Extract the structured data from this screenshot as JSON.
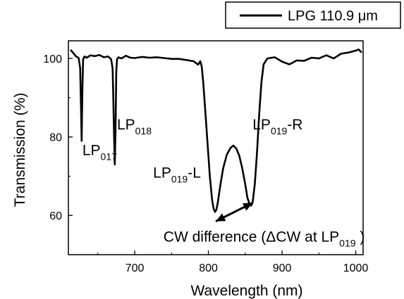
{
  "chart_data": {
    "type": "line",
    "title": "",
    "xlabel": "Wavelength (nm)",
    "ylabel": "Transmission (%)",
    "xlim": [
      610,
      1010
    ],
    "ylim": [
      50,
      104.5
    ],
    "x_ticks": [
      700,
      800,
      900,
      1000
    ],
    "y_ticks": [
      60,
      80,
      100
    ],
    "grid": false,
    "legend_position": "top-right",
    "color": "#000000",
    "series": [
      {
        "name": "LPG 110.9 μm",
        "x": [
          613,
          617,
          620,
          624,
          626,
          627,
          628,
          629,
          630,
          632,
          635,
          640,
          646,
          652,
          658,
          664,
          668,
          670,
          671,
          672,
          673,
          674,
          675,
          676,
          678,
          682,
          688,
          694,
          700,
          710,
          720,
          730,
          740,
          750,
          760,
          770,
          780,
          786,
          789,
          791,
          793,
          796,
          799,
          802,
          805,
          807,
          809,
          811,
          813,
          816,
          820,
          825,
          830,
          834,
          838,
          842,
          846,
          850,
          853,
          856,
          858,
          860,
          863,
          866,
          869,
          872,
          875,
          880,
          890,
          900,
          910,
          920,
          930,
          940,
          950,
          960,
          970,
          980,
          990,
          1000,
          1004,
          1008
        ],
        "y": [
          102.2,
          101.3,
          100.6,
          100.1,
          97.5,
          88.5,
          79.0,
          92.5,
          99.8,
          100.5,
          100.2,
          100.8,
          100.6,
          100.9,
          100.3,
          100.5,
          99.8,
          97.5,
          90.0,
          80.0,
          73.0,
          82.0,
          96.5,
          99.8,
          100.3,
          100.0,
          100.7,
          100.2,
          100.1,
          100.4,
          100.2,
          100.3,
          100.1,
          99.9,
          99.9,
          99.6,
          99.3,
          98.4,
          99.3,
          98.0,
          94.0,
          86.0,
          78.0,
          70.0,
          64.0,
          61.8,
          60.9,
          61.5,
          63.5,
          67.5,
          72.0,
          75.5,
          77.2,
          77.8,
          77.0,
          75.2,
          72.0,
          68.0,
          64.5,
          62.8,
          62.5,
          63.3,
          68.0,
          76.0,
          86.0,
          94.0,
          98.5,
          100.0,
          100.3,
          99.2,
          98.5,
          99.5,
          99.4,
          100.2,
          100.0,
          100.8,
          100.0,
          101.2,
          101.5,
          102.0,
          102.3,
          101.5
        ]
      }
    ],
    "annotations": [
      {
        "main": "LP",
        "sub": "017",
        "x": 629,
        "y": 75.4
      },
      {
        "main": "LP",
        "sub": "018",
        "x": 676,
        "y": 81.9
      },
      {
        "main": "LP",
        "sub": "019",
        "suffix": "-L",
        "x": 725,
        "y": 69.6
      },
      {
        "main": "LP",
        "sub": "019",
        "suffix": "-R",
        "x": 860,
        "y": 81.9
      },
      {
        "prefix": "CW difference (ΔCW at LP",
        "sub": "019",
        "suffix": " )",
        "x": 739,
        "y": 53.3
      }
    ],
    "arrow": {
      "x1": 810,
      "y1": 58.5,
      "x2": 860,
      "y2": 63.2
    }
  }
}
